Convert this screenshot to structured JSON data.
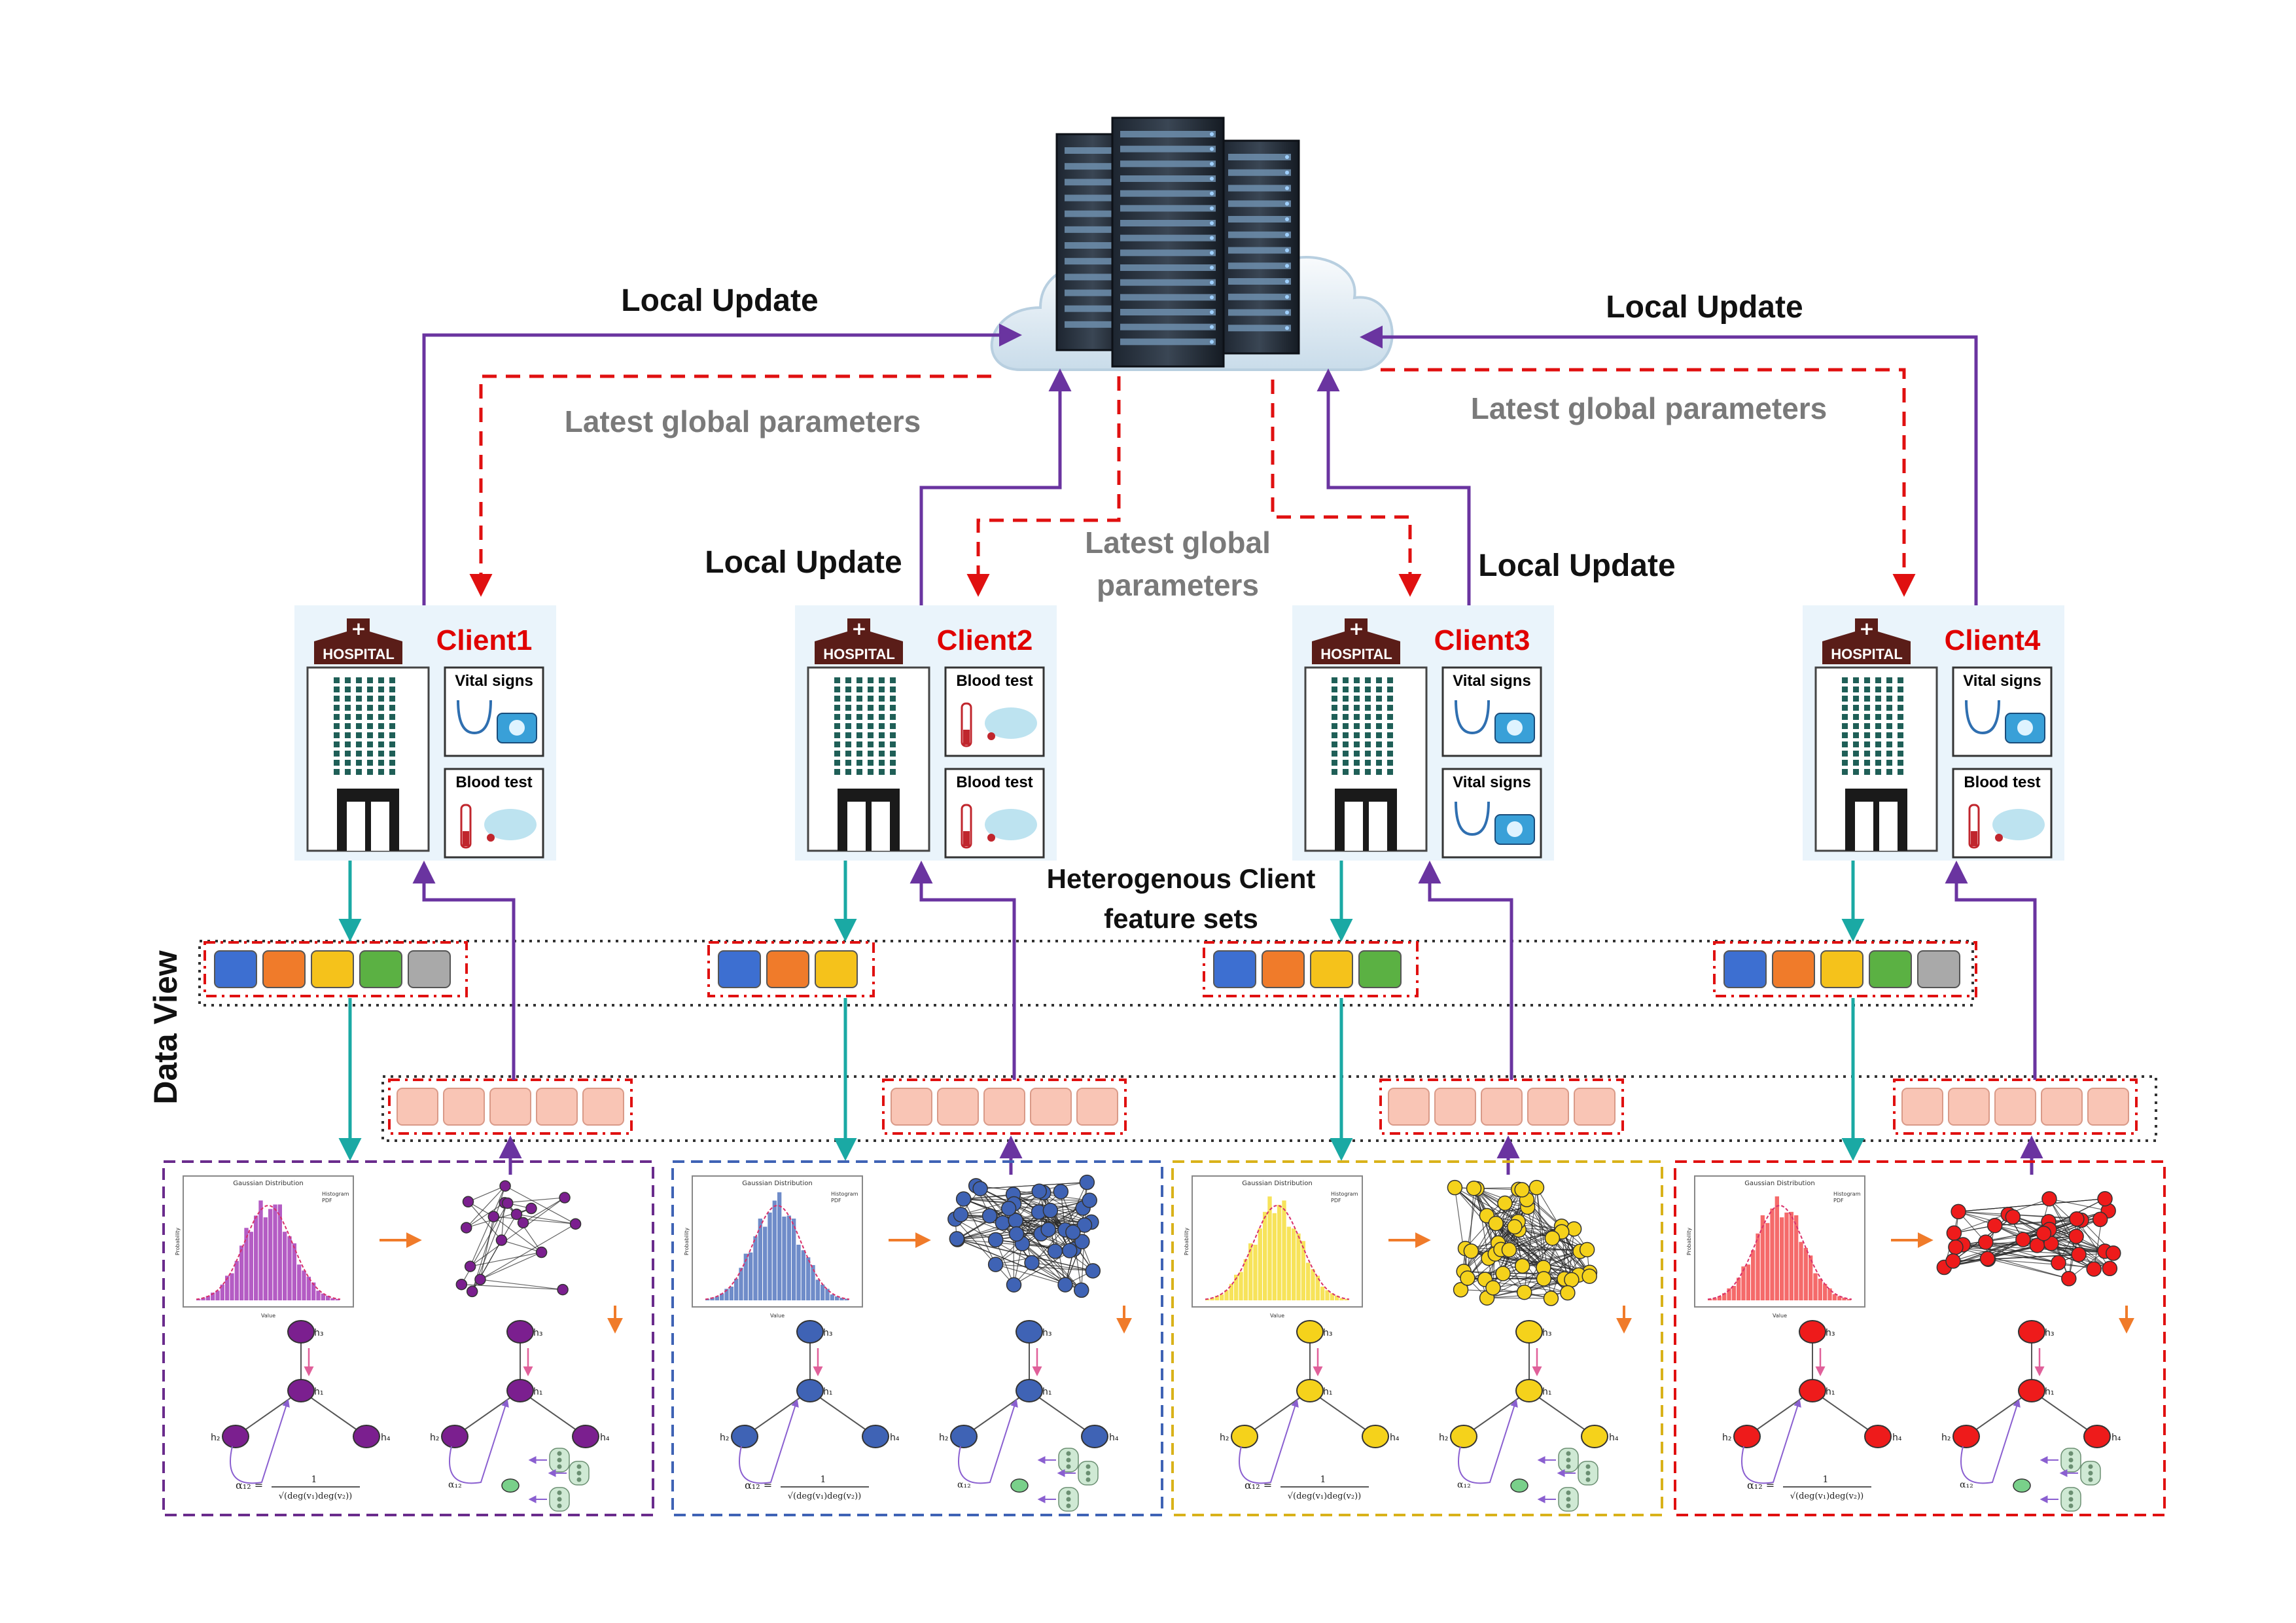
{
  "labels": {
    "local_update": "Local Update",
    "latest_global": "Latest global parameters",
    "latest_global_line1": "Latest global",
    "latest_global_line2": "parameters",
    "hetero_line1": "Heterogenous Client",
    "hetero_line2": "feature sets",
    "data_view": "Data View",
    "hospital": "HOSPITAL"
  },
  "clients": [
    {
      "name": "Client1",
      "panel_top": "Vital signs",
      "panel_bottom": "Blood test",
      "features": 5,
      "accent": "#7b1f8f"
    },
    {
      "name": "Client2",
      "panel_top": "Blood test",
      "panel_bottom": "Blood test",
      "features": 3,
      "accent": "#3f63b5"
    },
    {
      "name": "Client3",
      "panel_top": "Vital signs",
      "panel_bottom": "Vital signs",
      "features": 4,
      "accent": "#f2cc1a"
    },
    {
      "name": "Client4",
      "panel_top": "Vital signs",
      "panel_bottom": "Blood test",
      "features": 5,
      "accent": "#ee1b1b"
    }
  ],
  "colors": {
    "feature": [
      "#3d6fd1",
      "#f07b2a",
      "#f5c21b",
      "#5bb143",
      "#a9a9a9"
    ],
    "peach": "#f9c5b5",
    "teal": "#1aa9a4",
    "purple": "#6a34a0",
    "red_dashed": "#e01010",
    "box_borders": [
      "#6a2c8c",
      "#3f63b5",
      "#d9b21a",
      "#e01010"
    ]
  },
  "mini": {
    "title": "Gaussian Distribution",
    "legend_hist": "Histogram",
    "legend_pdf": "PDF",
    "xlabel": "Value",
    "ylabel": "Probability",
    "h1": "h₁",
    "h2": "h₂",
    "h3": "h₃",
    "h4": "h₄",
    "alpha_left": "α₁₂ =",
    "alpha_frac_num": "1",
    "alpha_frac_den": "√(deg(v₁)deg(v₂))",
    "alpha_right": "α₁₂"
  }
}
